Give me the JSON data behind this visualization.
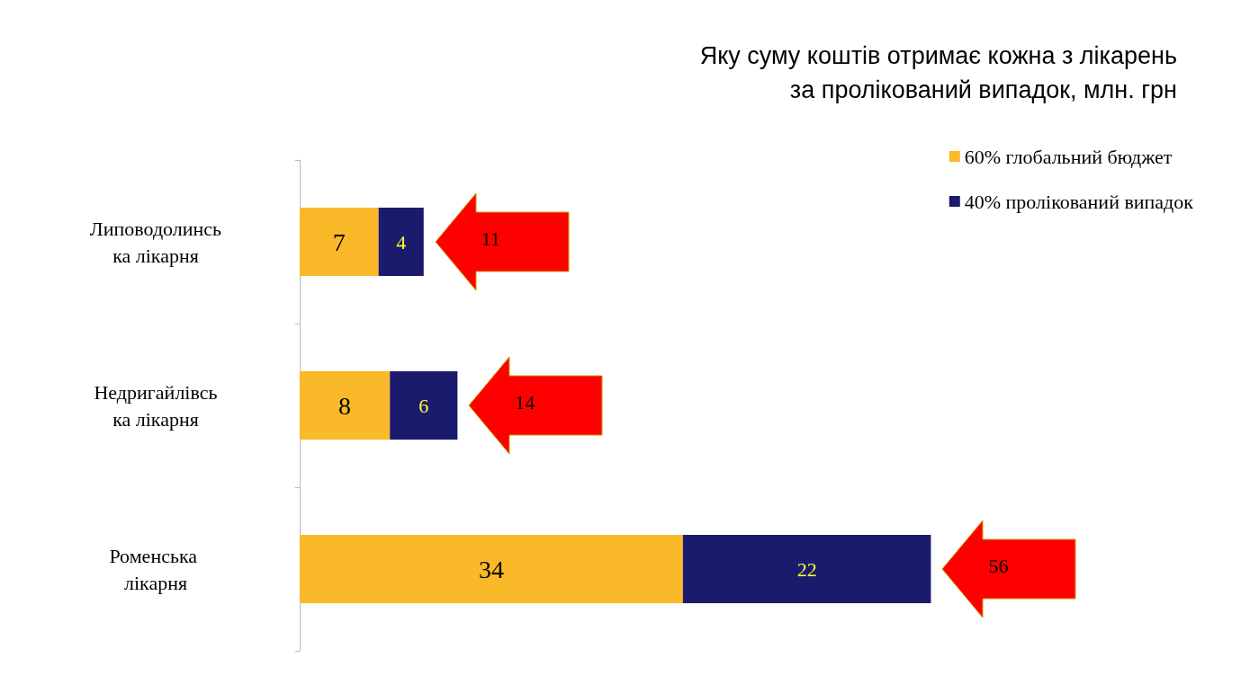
{
  "chart_data": {
    "type": "bar",
    "orientation": "horizontal",
    "stacked": true,
    "title": "Яку суму коштів отримає кожна з лікарень за пролікований випадок, млн. грн",
    "categories": [
      "Липоводолинська лікарня",
      "Недригайлівська лікарня",
      "Роменська лікарня"
    ],
    "series": [
      {
        "name": "60% глобальний бюджет",
        "color": "#f9b928",
        "values": [
          7,
          8,
          34
        ]
      },
      {
        "name": "40% пролікований випадок",
        "color": "#1b1b6e",
        "values": [
          4,
          6,
          22
        ]
      }
    ],
    "data_labels": true,
    "totals": [
      "11",
      "14",
      "56"
    ],
    "legend": "top right"
  }
}
